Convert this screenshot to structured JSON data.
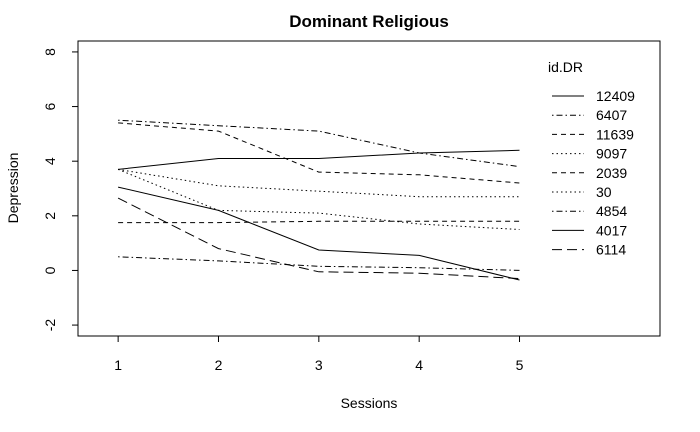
{
  "chart_data": {
    "type": "line",
    "title": "Dominant Religious",
    "xlabel": "Sessions",
    "ylabel": "Depression",
    "x": [
      1,
      2,
      3,
      4,
      5
    ],
    "xticks": [
      "1",
      "2",
      "3",
      "4",
      "5"
    ],
    "yticks": [
      "-2",
      "0",
      "2",
      "4",
      "6",
      "8"
    ],
    "xlim": [
      0.6,
      6.4
    ],
    "ylim": [
      -2.4,
      8.4
    ],
    "legend": {
      "title": "id.DR",
      "position": "top-right"
    },
    "grid": false,
    "series": [
      {
        "name": "12409",
        "dash": "solid",
        "values": [
          3.7,
          4.1,
          4.1,
          4.3,
          4.4
        ]
      },
      {
        "name": "6407",
        "dash": "dotdash",
        "values": [
          5.5,
          5.3,
          5.1,
          4.3,
          3.8
        ]
      },
      {
        "name": "11639",
        "dash": "dashed",
        "values": [
          5.4,
          5.1,
          3.6,
          3.5,
          3.2
        ]
      },
      {
        "name": "9097",
        "dash": "dotted",
        "values": [
          3.7,
          3.1,
          2.9,
          2.7,
          2.7
        ]
      },
      {
        "name": "2039",
        "dash": "dashed",
        "values": [
          1.75,
          1.75,
          1.8,
          1.8,
          1.8
        ]
      },
      {
        "name": "30",
        "dash": "dotted",
        "values": [
          3.7,
          2.2,
          2.1,
          1.7,
          1.5
        ]
      },
      {
        "name": "4854",
        "dash": "dotdash",
        "values": [
          0.5,
          0.35,
          0.15,
          0.1,
          0.0
        ]
      },
      {
        "name": "4017",
        "dash": "solid",
        "values": [
          3.05,
          2.2,
          0.75,
          0.55,
          -0.35
        ]
      },
      {
        "name": "6114",
        "dash": "longdash",
        "values": [
          2.65,
          0.8,
          -0.05,
          -0.1,
          -0.3
        ]
      }
    ]
  }
}
